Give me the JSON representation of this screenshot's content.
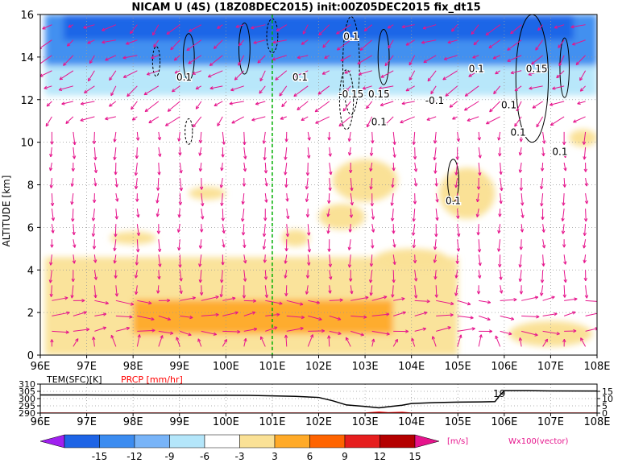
{
  "title": "NICAM U (4S) (18Z08DEC2015) init:00Z05DEC2015 fix_dt15",
  "chart_data": [
    {
      "type": "heatmap",
      "panel": "main",
      "ylabel": "ALTITUDE [km]",
      "xlim": [
        96,
        108
      ],
      "ylim": [
        0,
        16
      ],
      "x_ticks": [
        "96E",
        "97E",
        "98E",
        "99E",
        "100E",
        "101E",
        "102E",
        "103E",
        "104E",
        "105E",
        "106E",
        "107E",
        "108E"
      ],
      "y_ticks": [
        "0",
        "2",
        "4",
        "6",
        "8",
        "10",
        "12",
        "14",
        "16"
      ],
      "marker_line_x": 101,
      "grid": true,
      "contour_labels": [
        {
          "text": "0.1",
          "x": 99.1,
          "y": 12.9
        },
        {
          "text": "0.1",
          "x": 101.6,
          "y": 12.9
        },
        {
          "text": "0.1",
          "x": 102.7,
          "y": 14.8
        },
        {
          "text": "-0.15",
          "x": 102.7,
          "y": 12.1
        },
        {
          "text": "0.15",
          "x": 103.3,
          "y": 12.1
        },
        {
          "text": "-0.1",
          "x": 104.5,
          "y": 11.8
        },
        {
          "text": "0.1",
          "x": 103.3,
          "y": 10.8
        },
        {
          "text": "0.1",
          "x": 105.4,
          "y": 13.3
        },
        {
          "text": "0.1",
          "x": 106.1,
          "y": 11.6
        },
        {
          "text": "0.15",
          "x": 106.7,
          "y": 13.3
        },
        {
          "text": "0.1",
          "x": 106.3,
          "y": 10.3
        },
        {
          "text": "0.1",
          "x": 107.2,
          "y": 9.4
        },
        {
          "text": "0.1",
          "x": 104.9,
          "y": 7.1
        }
      ],
      "shading": {
        "levels": [
          -15,
          -12,
          -9,
          -6,
          -3,
          3,
          6,
          9,
          12,
          15
        ],
        "regions": [
          {
            "level": "-6..-3",
            "x0": 96.1,
            "x1": 108,
            "y0": 12.2,
            "y1": 16
          },
          {
            "level": "-9..-6",
            "x0": 96.1,
            "x1": 108,
            "y0": 13.6,
            "y1": 16
          },
          {
            "level": "-12..-9",
            "x0": 96.5,
            "x1": 107.5,
            "y0": 14.8,
            "y1": 16
          },
          {
            "level": "3..6",
            "x0": 96.1,
            "x1": 105,
            "y0": 0,
            "y1": 4.6
          },
          {
            "level": "6..9",
            "x0": 98,
            "x1": 103.6,
            "y0": 1,
            "y1": 2.6
          }
        ]
      }
    },
    {
      "type": "line",
      "panel": "surface",
      "series": [
        {
          "name": "TEM(SFC)[K]",
          "color": "#000000",
          "x": [
            96,
            97,
            98,
            99,
            100,
            100.5,
            101,
            101.5,
            102,
            102.3,
            102.6,
            103,
            103.3,
            103.5,
            103.8,
            104,
            104.5,
            105,
            105.5,
            105.8,
            105.9,
            106,
            106.5,
            107,
            108
          ],
          "values": [
            302.5,
            302.5,
            302.4,
            302.3,
            302.3,
            302.2,
            301.9,
            301.5,
            300.8,
            298.5,
            295.6,
            294.6,
            293.6,
            294.4,
            295.4,
            296.6,
            297.2,
            297.6,
            297.7,
            297.9,
            302,
            305.5,
            305.5,
            305.3,
            305.2
          ]
        },
        {
          "name": "PRCP [mm/hr]",
          "color": "#ff0000",
          "x": [
            96,
            103,
            103.3,
            103.5,
            103.8,
            104,
            108
          ],
          "values": [
            0,
            0,
            0.6,
            0.2,
            0.5,
            0,
            0
          ]
        }
      ],
      "left_axis": {
        "range": [
          290,
          310
        ],
        "ticks": [
          "290",
          "295",
          "300",
          "305",
          "310"
        ]
      },
      "right_axis": {
        "range": [
          0,
          20
        ],
        "ticks": [
          "0",
          "5",
          "10",
          "15"
        ]
      },
      "annotation": "19",
      "x_ticks": [
        "96E",
        "97E",
        "98E",
        "99E",
        "100E",
        "101E",
        "102E",
        "103E",
        "104E",
        "105E",
        "106E",
        "107E",
        "108E"
      ]
    }
  ],
  "colorbar": {
    "ticks": [
      "-15",
      "-12",
      "-9",
      "-6",
      "-3",
      "3",
      "6",
      "9",
      "12",
      "15"
    ],
    "colors": [
      "#a020f0",
      "#1e64e6",
      "#3c8cf0",
      "#78b4f8",
      "#b4e6fa",
      "#ffffff",
      "#fae196",
      "#ffaa28",
      "#ff6400",
      "#e61e1e",
      "#b40000",
      "#e6148c"
    ],
    "unit": "[m/s]",
    "vector_note": "Wx100(vector)"
  },
  "colors": {
    "vector": "#e6148c",
    "marker": "#00b000",
    "prcp": "#ff0000"
  }
}
